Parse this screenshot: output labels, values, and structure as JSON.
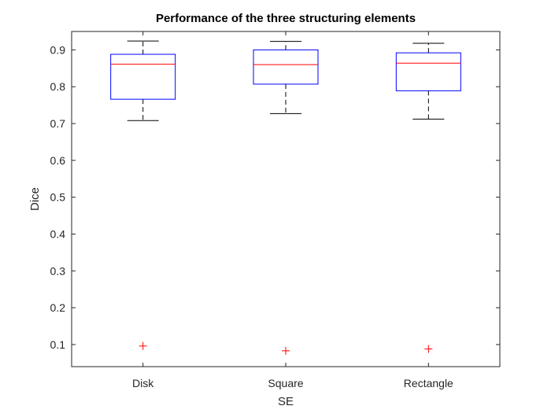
{
  "chart_data": {
    "type": "box",
    "title": "Performance of the three structuring elements",
    "xlabel": "SE",
    "ylabel": "Dice",
    "categories": [
      "Disk",
      "Square",
      "Rectangle"
    ],
    "ylim": [
      0.04,
      0.95
    ],
    "yticks": [
      0.1,
      0.2,
      0.3,
      0.4,
      0.5,
      0.6,
      0.7,
      0.8,
      0.9
    ],
    "ytick_labels": [
      "0.1",
      "0.2",
      "0.3",
      "0.4",
      "0.5",
      "0.6",
      "0.7",
      "0.8",
      "0.9"
    ],
    "grid": false,
    "boxes": [
      {
        "category": "Disk",
        "whisker_low": 0.708,
        "q1": 0.766,
        "median": 0.861,
        "q3": 0.888,
        "whisker_high": 0.924,
        "outliers": [
          0.096
        ]
      },
      {
        "category": "Square",
        "whisker_low": 0.727,
        "q1": 0.807,
        "median": 0.86,
        "q3": 0.9,
        "whisker_high": 0.923,
        "outliers": [
          0.083
        ]
      },
      {
        "category": "Rectangle",
        "whisker_low": 0.712,
        "q1": 0.789,
        "median": 0.864,
        "q3": 0.892,
        "whisker_high": 0.918,
        "outliers": [
          0.088
        ]
      }
    ],
    "colors": {
      "box": "#0000ff",
      "median": "#ff0000",
      "whisker": "#000000",
      "outlier": "#ff0000",
      "axes": "#262626"
    }
  }
}
